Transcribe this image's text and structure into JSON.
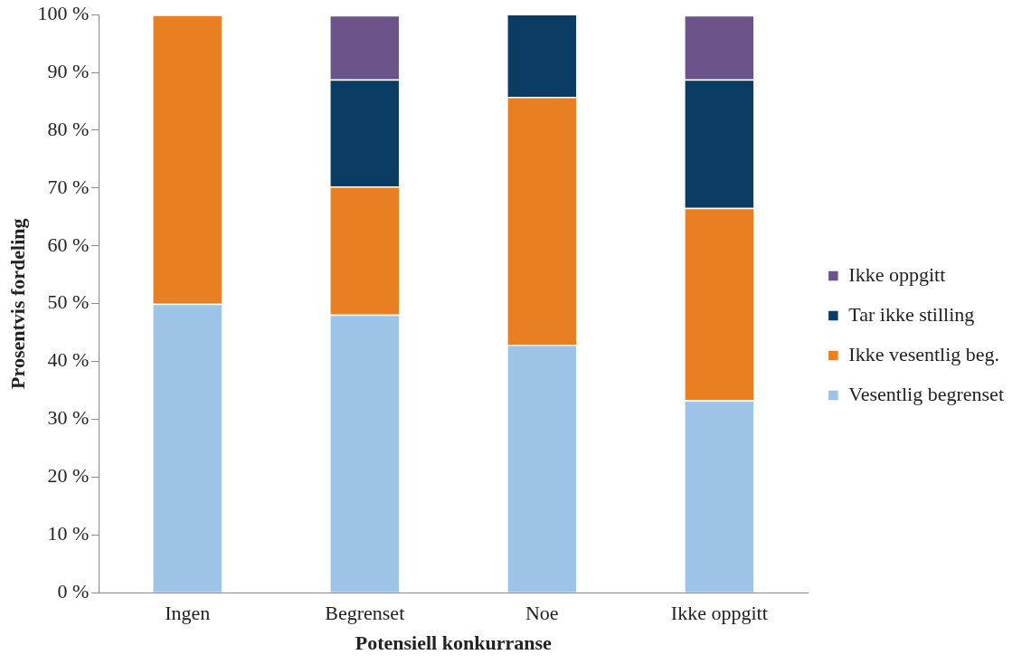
{
  "chart_data": {
    "type": "bar",
    "stacked": true,
    "xlabel": "Potensiell konkurranse",
    "ylabel": "Prosentvis fordeling",
    "categories": [
      "Ingen",
      "Begrenset",
      "Noe",
      "Ikke oppgitt"
    ],
    "series": [
      {
        "name": "Vesentlig begrenset",
        "color": "#9dc3e6",
        "values": [
          50,
          48.1,
          42.9,
          33.3
        ]
      },
      {
        "name": "Ikke vesentlig beg.",
        "color": "#e97f23",
        "values": [
          50,
          22.2,
          42.9,
          33.3
        ]
      },
      {
        "name": "Tar ikke stilling",
        "color": "#0b3c64",
        "values": [
          0,
          18.5,
          14.3,
          22.2
        ]
      },
      {
        "name": "Ikke oppgitt",
        "color": "#6c548a",
        "values": [
          0,
          11.1,
          0,
          11.1
        ]
      }
    ],
    "ylim": [
      0,
      100
    ],
    "yticks": [
      {
        "value": 0,
        "label": "0 %"
      },
      {
        "value": 10,
        "label": "10 %"
      },
      {
        "value": 20,
        "label": "20 %"
      },
      {
        "value": 30,
        "label": "30 %"
      },
      {
        "value": 40,
        "label": "40 %"
      },
      {
        "value": 50,
        "label": "50 %"
      },
      {
        "value": 60,
        "label": "60 %"
      },
      {
        "value": 70,
        "label": "70 %"
      },
      {
        "value": 80,
        "label": "80 %"
      },
      {
        "value": 90,
        "label": "90 %"
      },
      {
        "value": 100,
        "label": "100 %"
      }
    ],
    "grid": false,
    "legend": "right"
  }
}
